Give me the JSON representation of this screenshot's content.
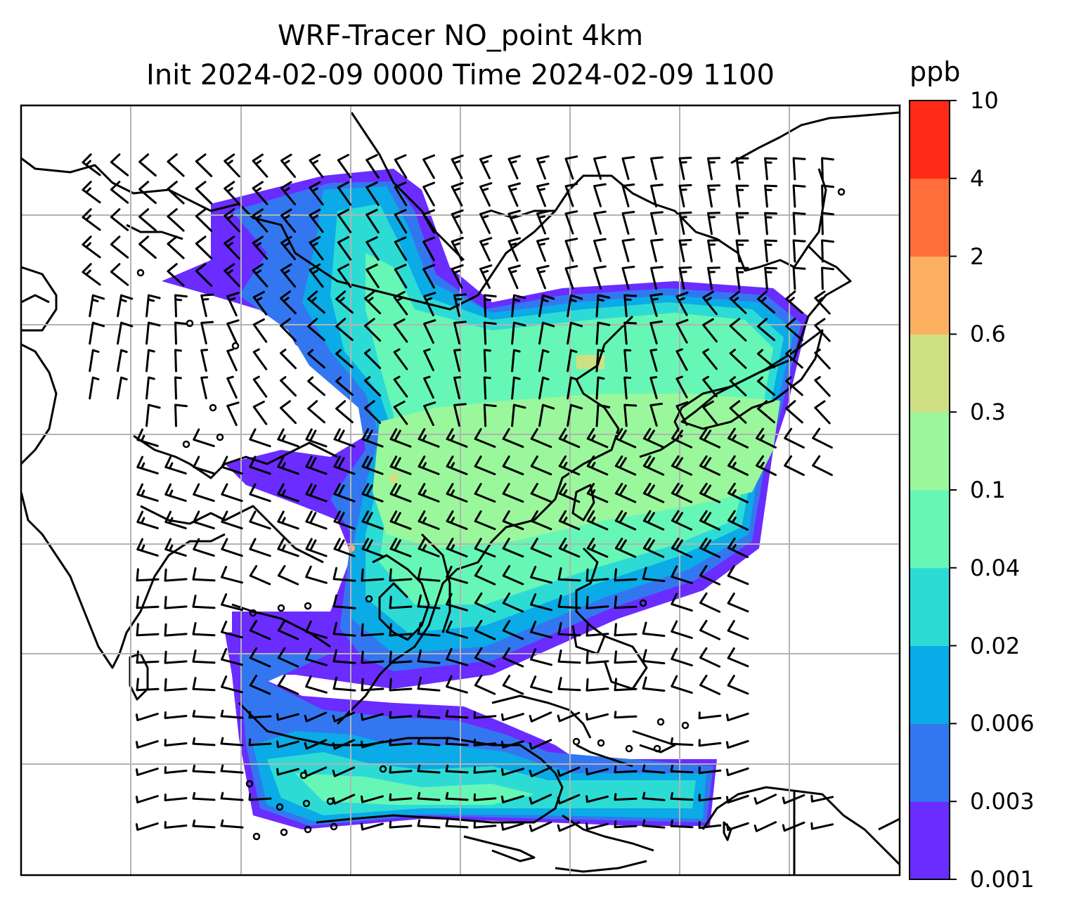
{
  "title": {
    "line1": "WRF-Tracer NO_point 4km",
    "line2": "Init 2024-02-09 0000 Time 2024-02-09 1100"
  },
  "colorbar": {
    "unit": "ppb",
    "ticks": [
      "0.001",
      "0.003",
      "0.006",
      "0.02",
      "0.04",
      "0.1",
      "0.3",
      "0.6",
      "2",
      "4",
      "10"
    ],
    "colors": [
      "#6a2cff",
      "#3377f0",
      "#0aabe6",
      "#2ddbd5",
      "#66f7b6",
      "#9bf79c",
      "#cee083",
      "#fcb05f",
      "#ff6e3a",
      "#ff2a16"
    ]
  },
  "map": {
    "background": "#ffffff",
    "gridline_color": "#b3b3b3",
    "coastline_color": "#000000",
    "barb_color": "#000000"
  }
}
